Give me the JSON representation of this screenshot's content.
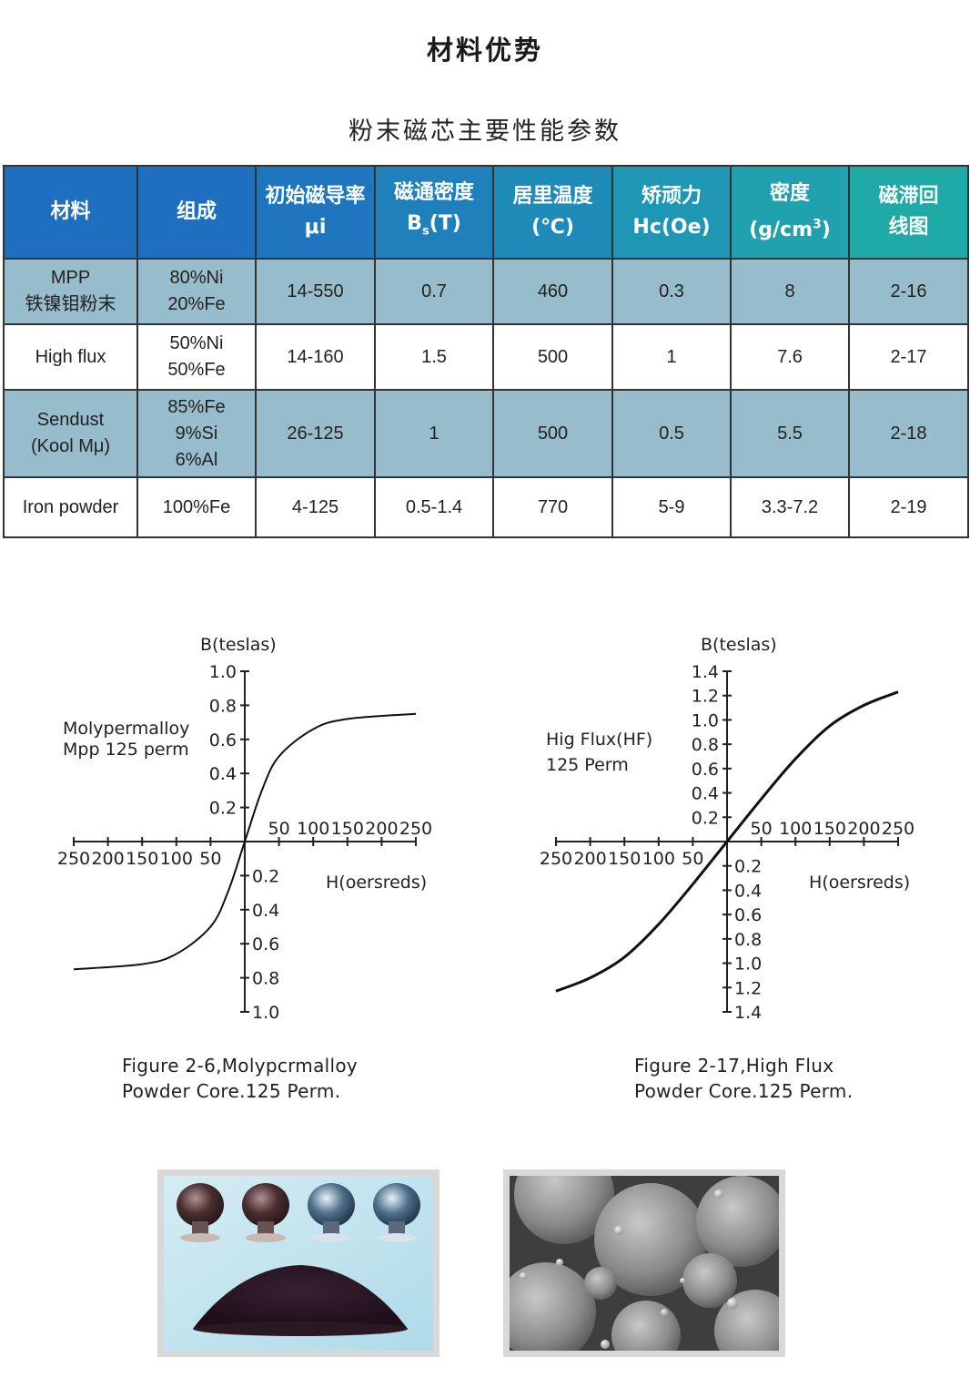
{
  "page": {
    "title": "材料优势",
    "subtitle": "粉末磁芯主要性能参数"
  },
  "table": {
    "headers": [
      {
        "line1": "材料",
        "line2": ""
      },
      {
        "line1": "组成",
        "line2": ""
      },
      {
        "line1": "初始磁导率",
        "line2": "μi"
      },
      {
        "line1": "磁通密度",
        "line2": "Bs(T)"
      },
      {
        "line1": "居里温度",
        "line2": "(℃)"
      },
      {
        "line1": "矫顽力",
        "line2": "Hc(Oe)"
      },
      {
        "line1": "密度",
        "line2": "(g/cm3)"
      },
      {
        "line1": "磁滞回",
        "line2": "线图"
      }
    ],
    "header_colors": [
      "#1f6fc1",
      "#1f6fc1",
      "#1f76bf",
      "#1f80bc",
      "#1f8bb8",
      "#1f96b3",
      "#1fa1ae",
      "#1faaa8"
    ],
    "rows": [
      {
        "material": [
          "MPP",
          "铁镍钼粉末"
        ],
        "composition": [
          "80%Ni",
          "20%Fe"
        ],
        "mu": "14-550",
        "bs": "0.7",
        "curie": "460",
        "hc": "0.3",
        "density": "8",
        "curve": "2-16"
      },
      {
        "material": [
          "High flux"
        ],
        "composition": [
          "50%Ni",
          "50%Fe"
        ],
        "mu": "14-160",
        "bs": "1.5",
        "curie": "500",
        "hc": "1",
        "density": "7.6",
        "curve": "2-17"
      },
      {
        "material": [
          "Sendust",
          "(Kool Mμ)"
        ],
        "composition": [
          "85%Fe",
          "9%Si",
          "6%Al"
        ],
        "mu": "26-125",
        "bs": "1",
        "curie": "500",
        "hc": "0.5",
        "density": "5.5",
        "curve": "2-18"
      },
      {
        "material": [
          "Iron powder"
        ],
        "composition": [
          "100%Fe"
        ],
        "mu": "4-125",
        "bs": "0.5-1.4",
        "curie": "770",
        "hc": "5-9",
        "density": "3.3-7.2",
        "curve": "2-19"
      }
    ]
  },
  "charts": {
    "left": {
      "ylabel": "B(teslas)",
      "xlabel": "H(oersreds)",
      "label_line1": "Molypermalloy",
      "label_line2": "Mpp 125 perm",
      "caption_line1": "Figure 2-6,Molypcrmalloy",
      "caption_line2": "Powder Core.125 Perm."
    },
    "right": {
      "ylabel": "B(teslas)",
      "xlabel": "H(oersreds)",
      "label_line1": "Hig Flux(HF)",
      "label_line2": "125 Perm",
      "caption_line1": "Figure 2-17,High Flux",
      "caption_line2": "Powder Core.125 Perm."
    }
  },
  "chart_data": [
    {
      "type": "line",
      "title": "",
      "xlabel": "H(oersreds)",
      "ylabel": "B(teslas)",
      "xlim": [
        -250,
        250
      ],
      "ylim": [
        -1.0,
        1.0
      ],
      "x_ticks_pos": [
        "50",
        "100",
        "150",
        "200",
        "250"
      ],
      "x_ticks_neg": [
        "250",
        "200",
        "150",
        "100",
        "50"
      ],
      "y_ticks_pos": [
        "0.2",
        "0.4",
        "0.6",
        "0.8",
        "1.0"
      ],
      "y_ticks_neg": [
        "0.2",
        "0.4",
        "0.6",
        "0.8",
        "1.0"
      ],
      "series": [
        {
          "name": "Mpp 125 perm",
          "x": [
            -250,
            -150,
            -100,
            -50,
            -25,
            0,
            25,
            50,
            100,
            150,
            250
          ],
          "y": [
            -0.75,
            -0.72,
            -0.66,
            -0.5,
            -0.3,
            0,
            0.3,
            0.5,
            0.66,
            0.72,
            0.75
          ]
        }
      ]
    },
    {
      "type": "line",
      "title": "",
      "xlabel": "H(oersreds)",
      "ylabel": "B(teslas)",
      "xlim": [
        -250,
        250
      ],
      "ylim": [
        -1.4,
        1.4
      ],
      "x_ticks_pos": [
        "50",
        "100",
        "150",
        "200",
        "250"
      ],
      "x_ticks_neg": [
        "250",
        "200",
        "150",
        "100",
        "50"
      ],
      "y_ticks_pos": [
        "0.2",
        "0.4",
        "0.6",
        "0.8",
        "1.0",
        "1.2",
        "1.4"
      ],
      "y_ticks_neg": [
        "0.2",
        "0.4",
        "0.6",
        "0.8",
        "1.0",
        "1.2",
        "1.4"
      ],
      "series": [
        {
          "name": "125 Perm",
          "x": [
            -250,
            -200,
            -150,
            -100,
            -50,
            0,
            50,
            100,
            150,
            200,
            250
          ],
          "y": [
            -1.23,
            -1.12,
            -0.95,
            -0.68,
            -0.35,
            0,
            0.35,
            0.68,
            0.95,
            1.12,
            1.23
          ]
        }
      ]
    }
  ],
  "images": {
    "left_photo": "powder-cores-and-powder-photo",
    "right_photo": "sem-particle-micrograph"
  }
}
